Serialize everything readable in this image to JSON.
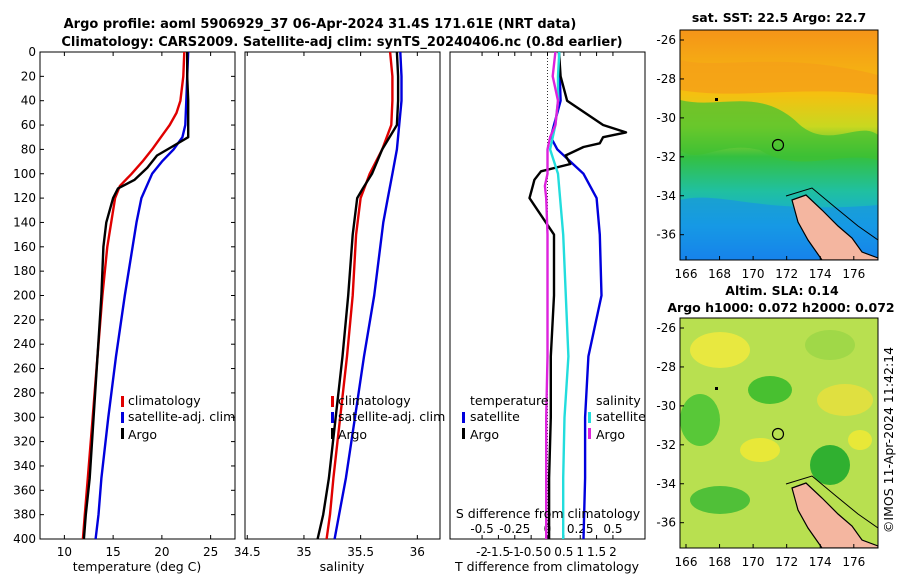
{
  "title_line1": "Argo profile: aoml 5906929_37 06-Apr-2024 31.4S 171.61E (NRT data)",
  "title_line2": "Climatology: CARS2009. Satellite-adj clim: synTS_20240406.nc (0.8d earlier)",
  "copyright": "©IMOS 11-Apr-2024 11:42:14",
  "colors": {
    "climatology": "#e00000",
    "satellite": "#0000dd",
    "argo": "#000000",
    "sat_salinity": "#22dddd",
    "argo_salinity": "#dd22dd"
  },
  "chart_data": [
    {
      "id": "temperature",
      "type": "line",
      "xlabel": "temperature (deg C)",
      "ylabel": "",
      "xlim": [
        7.5,
        27.5
      ],
      "ylim": [
        0,
        400
      ],
      "xticks": [
        "10",
        "15",
        "20",
        "25"
      ],
      "yticks": [
        "0",
        "20",
        "40",
        "60",
        "80",
        "100",
        "120",
        "140",
        "160",
        "180",
        "200",
        "220",
        "240",
        "260",
        "280",
        "300",
        "320",
        "340",
        "360",
        "380",
        "400"
      ],
      "legend": [
        "climatology",
        "satellite-adj. clim",
        "Argo"
      ],
      "series": [
        {
          "name": "climatology",
          "color": "#e00000",
          "depth": [
            0,
            20,
            40,
            50,
            60,
            70,
            80,
            90,
            100,
            110,
            120,
            140,
            160,
            200,
            250,
            300,
            350,
            380,
            400
          ],
          "values": [
            22.3,
            22.2,
            21.9,
            21.5,
            20.8,
            19.9,
            19.0,
            18.0,
            16.9,
            15.7,
            15.2,
            14.8,
            14.4,
            13.9,
            13.4,
            12.9,
            12.4,
            12.1,
            11.9
          ]
        },
        {
          "name": "satellite-adj. clim",
          "color": "#0000dd",
          "depth": [
            0,
            20,
            40,
            60,
            70,
            80,
            90,
            100,
            120,
            140,
            160,
            200,
            250,
            300,
            350,
            380,
            400
          ],
          "values": [
            22.7,
            22.6,
            22.5,
            22.4,
            22.1,
            21.2,
            20.0,
            19.0,
            17.9,
            17.4,
            17.0,
            16.2,
            15.3,
            14.5,
            13.8,
            13.5,
            13.2
          ]
        },
        {
          "name": "Argo",
          "color": "#000000",
          "depth": [
            0,
            20,
            40,
            60,
            70,
            78,
            85,
            95,
            105,
            112,
            120,
            140,
            160,
            200,
            250,
            300,
            350,
            380,
            400
          ],
          "values": [
            22.6,
            22.6,
            22.7,
            22.7,
            22.7,
            21.0,
            19.5,
            18.5,
            17.2,
            15.5,
            15.0,
            14.3,
            14.0,
            13.8,
            13.4,
            13.0,
            12.6,
            12.2,
            12.0
          ]
        }
      ]
    },
    {
      "id": "salinity",
      "type": "line",
      "xlabel": "salinity",
      "ylabel": "",
      "xlim": [
        34.48,
        36.2
      ],
      "ylim": [
        0,
        400
      ],
      "xticks": [
        "34.5",
        "35",
        "35.5",
        "36"
      ],
      "legend": [
        "climatology",
        "satellite-adj. clim",
        "Argo"
      ],
      "series": [
        {
          "name": "climatology",
          "color": "#e00000",
          "depth": [
            0,
            20,
            40,
            60,
            80,
            100,
            120,
            150,
            200,
            250,
            300,
            350,
            380,
            400
          ],
          "values": [
            35.76,
            35.78,
            35.78,
            35.77,
            35.69,
            35.58,
            35.5,
            35.46,
            35.43,
            35.38,
            35.32,
            35.26,
            35.23,
            35.2
          ]
        },
        {
          "name": "satellite-adj. clim",
          "color": "#0000dd",
          "depth": [
            0,
            20,
            40,
            60,
            80,
            100,
            120,
            140,
            200,
            250,
            300,
            350,
            380,
            400
          ],
          "values": [
            35.85,
            35.86,
            35.86,
            35.84,
            35.82,
            35.78,
            35.74,
            35.7,
            35.62,
            35.53,
            35.45,
            35.37,
            35.31,
            35.27
          ]
        },
        {
          "name": "Argo",
          "color": "#000000",
          "depth": [
            0,
            20,
            40,
            60,
            80,
            100,
            112,
            120,
            150,
            200,
            250,
            300,
            350,
            380,
            400
          ],
          "values": [
            35.82,
            35.83,
            35.83,
            35.82,
            35.69,
            35.6,
            35.52,
            35.47,
            35.43,
            35.39,
            35.34,
            35.28,
            35.22,
            35.17,
            35.12
          ]
        }
      ]
    },
    {
      "id": "differences",
      "type": "line",
      "xlabel": "T difference from climatology",
      "xlabel2": "S difference from climatology",
      "xlim": [
        -2.98,
        2.98
      ],
      "ylim": [
        0,
        400
      ],
      "xticks": [
        "-2",
        "-1.5",
        "-1",
        "-0.5",
        "0",
        "0.5",
        "1",
        "1.5",
        "2"
      ],
      "xticks_S": [
        "-0.5",
        "-0.25",
        "0",
        "0.25",
        "0.5"
      ],
      "xlim_S": [
        -0.745,
        0.745
      ],
      "legend_T_title": "temperature",
      "legend_S_title": "salinity",
      "legend_T": [
        "satellite",
        "Argo"
      ],
      "legend_S": [
        "satellite",
        "Argo"
      ],
      "series": [
        {
          "name": "T satellite",
          "color": "#0000dd",
          "depth": [
            0,
            40,
            60,
            70,
            80,
            90,
            100,
            120,
            150,
            200,
            250,
            300,
            350,
            400
          ],
          "values": [
            0.35,
            0.4,
            0.2,
            0.1,
            0.3,
            0.7,
            1.1,
            1.5,
            1.6,
            1.65,
            1.25,
            1.15,
            1.15,
            1.1
          ]
        },
        {
          "name": "T Argo",
          "color": "#000000",
          "depth": [
            0,
            20,
            40,
            60,
            66,
            70,
            75,
            78,
            85,
            92,
            98,
            105,
            110,
            120,
            130,
            150,
            200,
            250,
            300,
            350,
            400
          ],
          "values": [
            0.35,
            0.4,
            0.6,
            1.7,
            2.4,
            1.7,
            1.6,
            1.1,
            0.55,
            0.7,
            -0.2,
            -0.4,
            -0.45,
            -0.55,
            -0.3,
            0.2,
            0.2,
            0.1,
            0.1,
            0.05,
            0.05
          ]
        },
        {
          "name": "S satellite",
          "color": "#22dddd",
          "depth": [
            0,
            20,
            40,
            60,
            80,
            100,
            150,
            200,
            250,
            300,
            350,
            400
          ],
          "values": [
            0.09,
            0.08,
            0.08,
            0.06,
            0.02,
            0.08,
            0.12,
            0.14,
            0.16,
            0.13,
            0.12,
            0.12
          ]
        },
        {
          "name": "S Argo",
          "color": "#dd22dd",
          "depth": [
            0,
            20,
            40,
            60,
            70,
            80,
            100,
            110,
            120,
            150,
            200,
            250,
            300,
            350,
            400
          ],
          "values": [
            0.06,
            0.04,
            0.08,
            0.06,
            0.02,
            0.0,
            0.0,
            -0.02,
            -0.01,
            0.0,
            0.0,
            0.0,
            -0.01,
            -0.01,
            -0.01
          ]
        }
      ]
    }
  ],
  "maps": [
    {
      "id": "sst",
      "title": "sat. SST: 22.5 Argo: 22.7",
      "title2": "",
      "yticks": [
        "-26",
        "-28",
        "-30",
        "-32",
        "-34",
        "-36"
      ],
      "xticks": [
        "166",
        "168",
        "170",
        "172",
        "174",
        "176"
      ]
    },
    {
      "id": "sla",
      "title": "Altim. SLA: 0.14",
      "title2": "Argo h1000: 0.072 h2000: 0.072",
      "yticks": [
        "-26",
        "-28",
        "-30",
        "-32",
        "-34",
        "-36"
      ],
      "xticks": [
        "166",
        "168",
        "170",
        "172",
        "174",
        "176"
      ]
    }
  ]
}
